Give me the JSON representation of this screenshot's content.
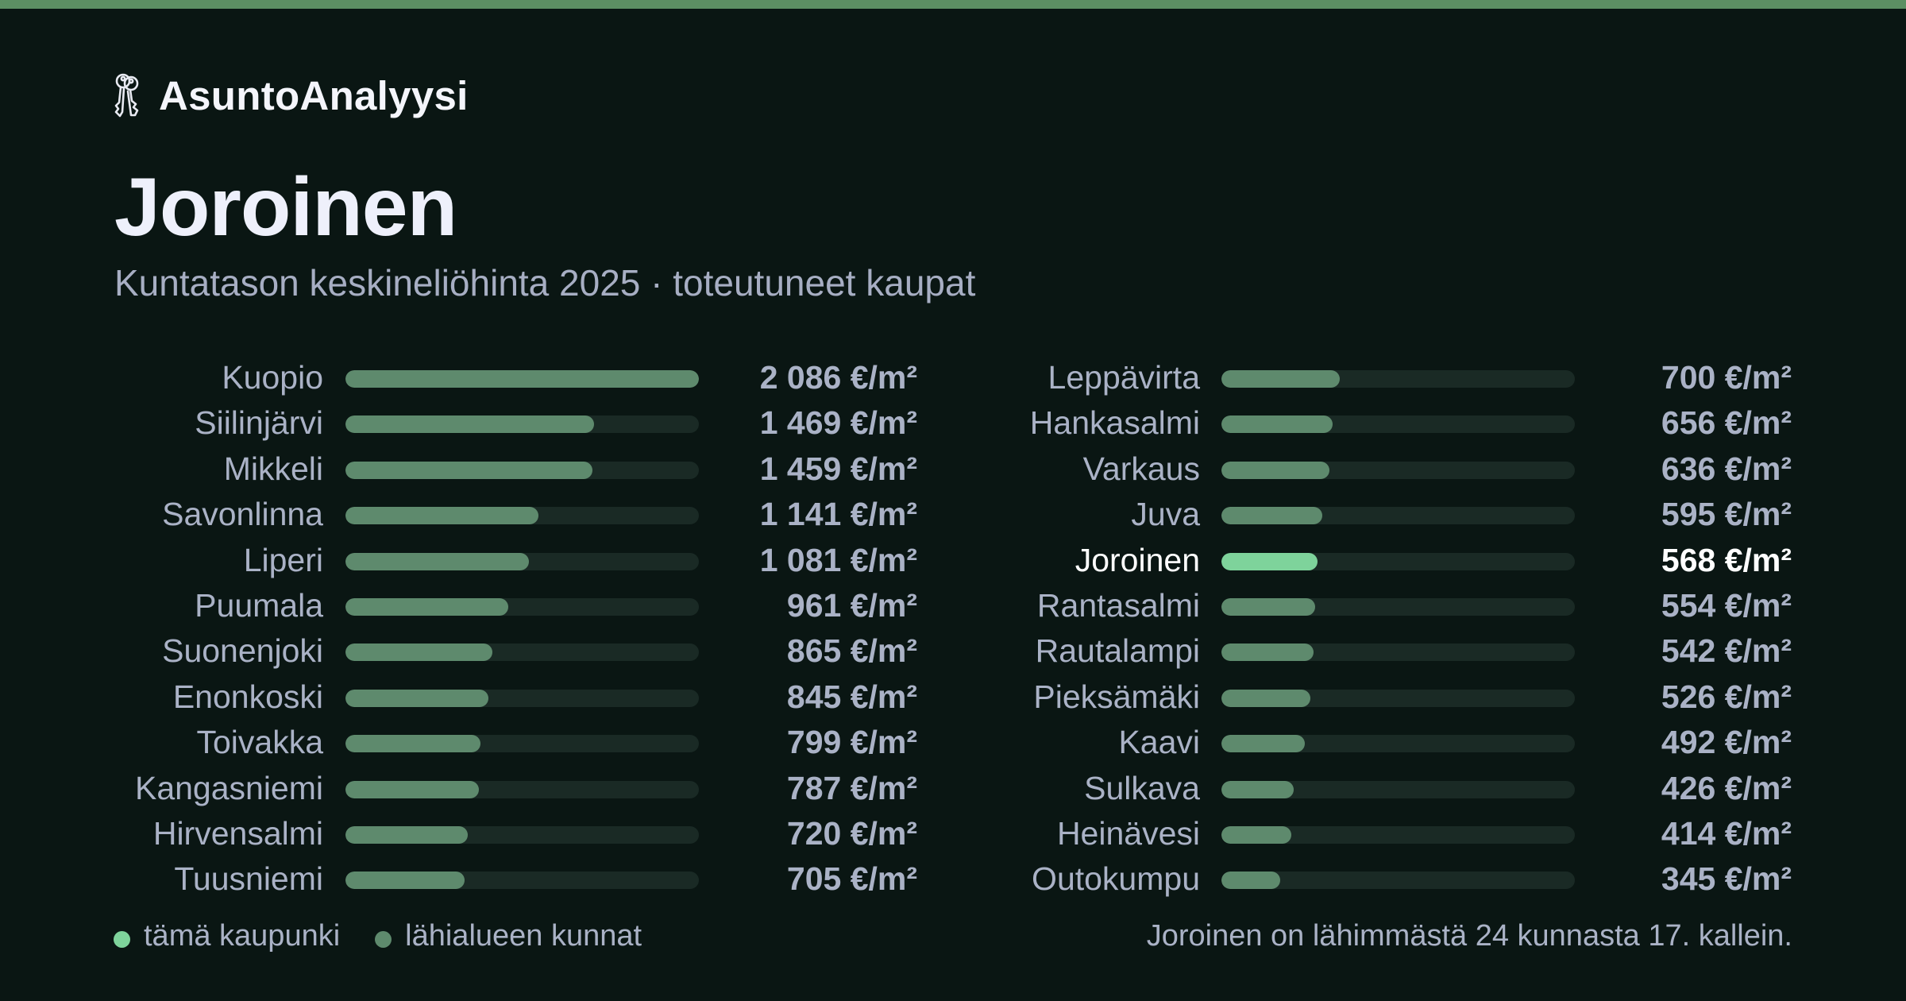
{
  "colors": {
    "top_bar": "#5c8f63",
    "background": "#0a1613",
    "bar_default": "#5e8a6d",
    "bar_highlight": "#7ed39b",
    "track": "#1a2a25"
  },
  "brand": {
    "name": "AsuntoAnalyysi",
    "icon": "keys-icon"
  },
  "header": {
    "title": "Joroinen",
    "subtitle": "Kuntatason keskineliöhinta 2025 · toteutuneet kaupat"
  },
  "legend": {
    "this_city": "tämä kaupunki",
    "nearby": "lähialueen kunnat"
  },
  "footnote": "Joroinen on lähimmästä 24 kunnasta 17. kallein.",
  "chart_data": {
    "type": "bar",
    "orientation": "horizontal",
    "unit": "€/m²",
    "xlim": [
      0,
      2086
    ],
    "highlight": "Joroinen",
    "left_column": [
      {
        "name": "Kuopio",
        "value": 2086,
        "label": "2 086 €/m²"
      },
      {
        "name": "Siilinjärvi",
        "value": 1469,
        "label": "1 469 €/m²"
      },
      {
        "name": "Mikkeli",
        "value": 1459,
        "label": "1 459 €/m²"
      },
      {
        "name": "Savonlinna",
        "value": 1141,
        "label": "1 141 €/m²"
      },
      {
        "name": "Liperi",
        "value": 1081,
        "label": "1 081 €/m²"
      },
      {
        "name": "Puumala",
        "value": 961,
        "label": "961 €/m²"
      },
      {
        "name": "Suonenjoki",
        "value": 865,
        "label": "865 €/m²"
      },
      {
        "name": "Enonkoski",
        "value": 845,
        "label": "845 €/m²"
      },
      {
        "name": "Toivakka",
        "value": 799,
        "label": "799 €/m²"
      },
      {
        "name": "Kangasniemi",
        "value": 787,
        "label": "787 €/m²"
      },
      {
        "name": "Hirvensalmi",
        "value": 720,
        "label": "720 €/m²"
      },
      {
        "name": "Tuusniemi",
        "value": 705,
        "label": "705 €/m²"
      }
    ],
    "right_column": [
      {
        "name": "Leppävirta",
        "value": 700,
        "label": "700 €/m²"
      },
      {
        "name": "Hankasalmi",
        "value": 656,
        "label": "656 €/m²"
      },
      {
        "name": "Varkaus",
        "value": 636,
        "label": "636 €/m²"
      },
      {
        "name": "Juva",
        "value": 595,
        "label": "595 €/m²"
      },
      {
        "name": "Joroinen",
        "value": 568,
        "label": "568 €/m²"
      },
      {
        "name": "Rantasalmi",
        "value": 554,
        "label": "554 €/m²"
      },
      {
        "name": "Rautalampi",
        "value": 542,
        "label": "542 €/m²"
      },
      {
        "name": "Pieksämäki",
        "value": 526,
        "label": "526 €/m²"
      },
      {
        "name": "Kaavi",
        "value": 492,
        "label": "492 €/m²"
      },
      {
        "name": "Sulkava",
        "value": 426,
        "label": "426 €/m²"
      },
      {
        "name": "Heinävesi",
        "value": 414,
        "label": "414 €/m²"
      },
      {
        "name": "Outokumpu",
        "value": 345,
        "label": "345 €/m²"
      }
    ]
  }
}
